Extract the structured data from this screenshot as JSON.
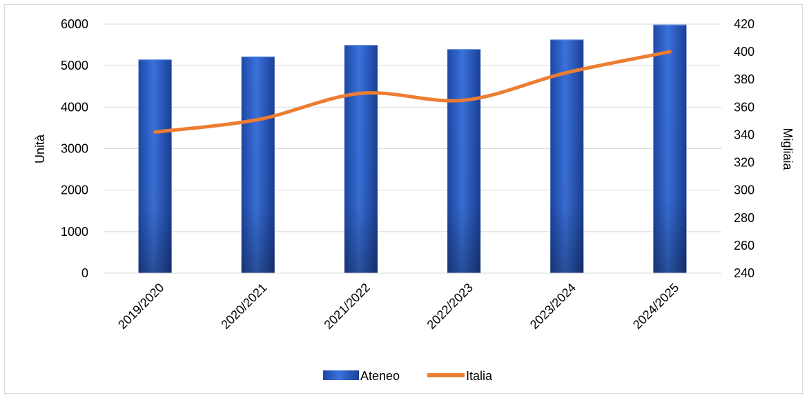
{
  "chart_data": {
    "type": "bar",
    "categories": [
      "2019/2020",
      "2020/2021",
      "2021/2022",
      "2022/2023",
      "2023/2024",
      "2024/2025"
    ],
    "series": [
      {
        "name": "Ateneo",
        "type": "bar",
        "axis": "left",
        "values": [
          5150,
          5220,
          5500,
          5400,
          5630,
          5990
        ],
        "color": "#2f63c9"
      },
      {
        "name": "Italia",
        "type": "line",
        "axis": "right",
        "smooth": true,
        "values": [
          342,
          351,
          370,
          365,
          385,
          400
        ],
        "color": "#ed7d31"
      }
    ],
    "ylabel": "Unità",
    "y2label": "Migliaia",
    "ylim": [
      0,
      6000
    ],
    "yticks": [
      0,
      1000,
      2000,
      3000,
      4000,
      5000,
      6000
    ],
    "y2lim": [
      240,
      420
    ],
    "y2ticks": [
      240,
      260,
      280,
      300,
      320,
      340,
      360,
      380,
      400,
      420
    ],
    "grid": true,
    "legend": "bottom"
  }
}
